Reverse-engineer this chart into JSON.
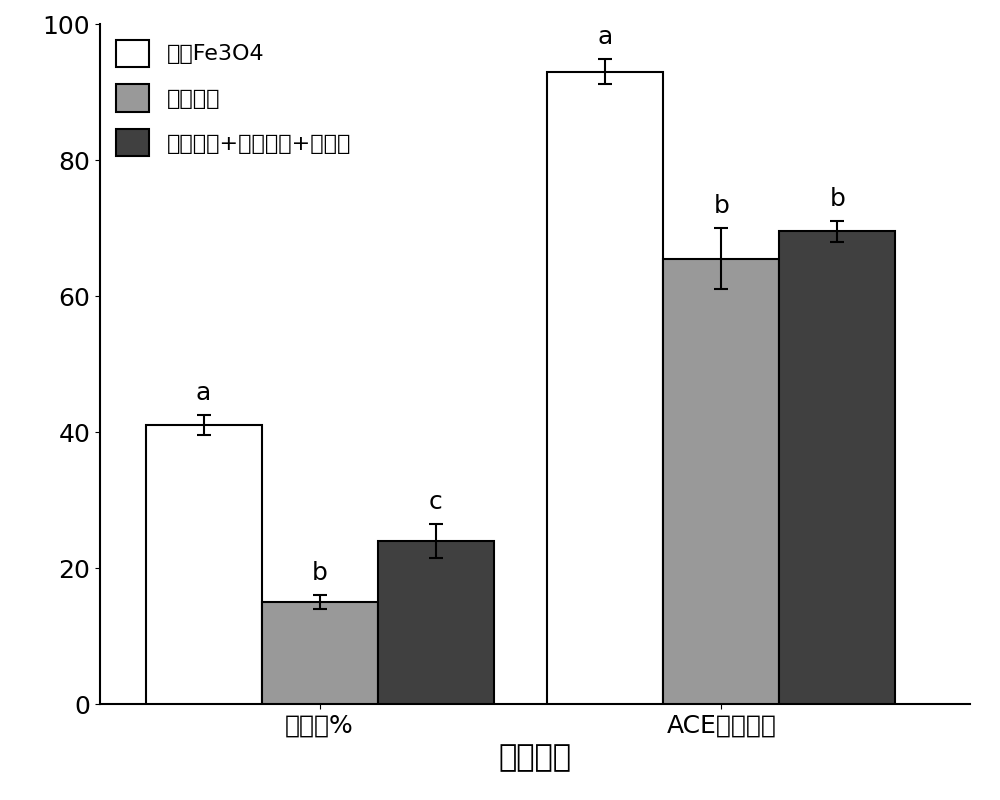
{
  "groups": [
    "水解度%",
    "ACE抑制活性"
  ],
  "series": [
    {
      "label": "磁性Fe3O4",
      "color": "#ffffff",
      "edgecolor": "#000000",
      "values": [
        41.0,
        93.0
      ],
      "errors": [
        1.5,
        1.8
      ],
      "letters": [
        "a",
        "a"
      ]
    },
    {
      "label": "海藻酸鰑",
      "color": "#999999",
      "edgecolor": "#000000",
      "values": [
        15.0,
        65.5
      ],
      "errors": [
        1.0,
        4.5
      ],
      "letters": [
        "b",
        "b"
      ]
    },
    {
      "label": "海藻酸鰑+聚乙二醇+壳聚糖",
      "color": "#404040",
      "edgecolor": "#000000",
      "values": [
        24.0,
        69.5
      ],
      "errors": [
        2.5,
        1.5
      ],
      "letters": [
        "c",
        "b"
      ]
    }
  ],
  "xlabel": "测定指标",
  "ylim": [
    0,
    100
  ],
  "yticks": [
    0,
    20,
    40,
    60,
    80,
    100
  ],
  "bar_width": 0.28,
  "group_centers": [
    0.28,
    1.25
  ],
  "xlabel_fontsize": 22,
  "tick_fontsize": 18,
  "legend_fontsize": 16,
  "letter_fontsize": 18,
  "background_color": "#ffffff"
}
